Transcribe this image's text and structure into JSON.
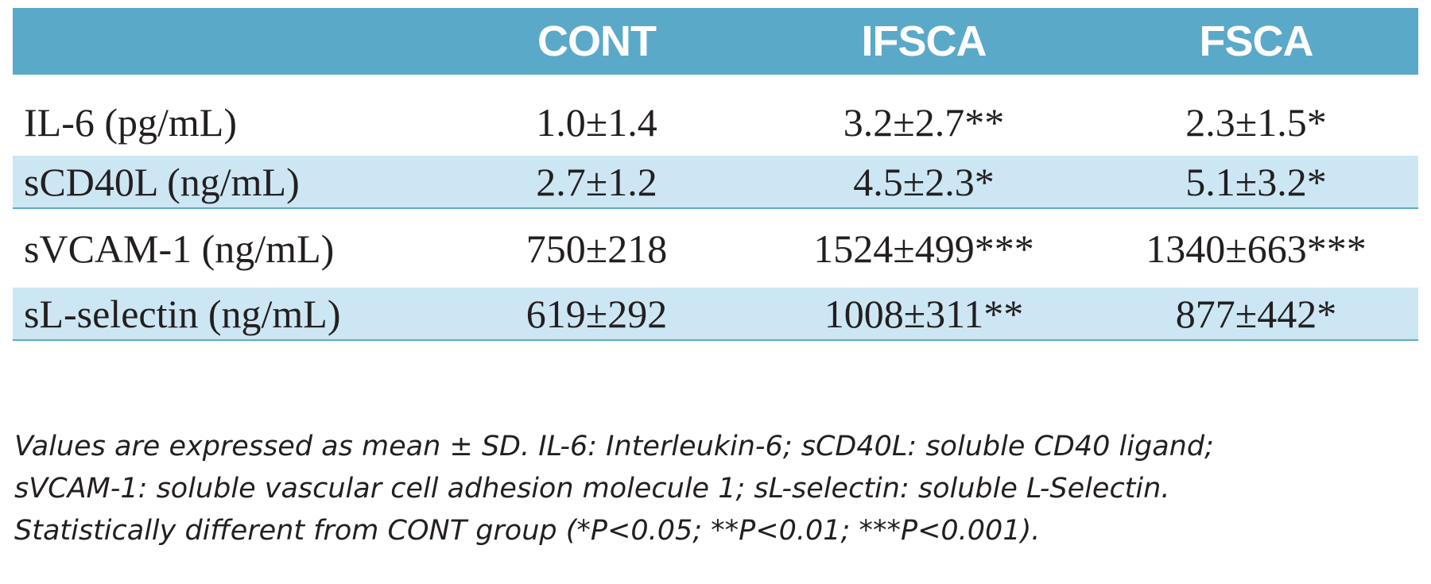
{
  "table": {
    "columns": [
      "",
      "CONT",
      "IFSCA",
      "FSCA"
    ],
    "rows": [
      {
        "label": "IL-6 (pg/mL)",
        "cont": "1.0±1.4",
        "ifsca": "3.2±2.7**",
        "fsca": "2.3±1.5*"
      },
      {
        "label": "sCD40L (ng/mL)",
        "cont": "2.7±1.2",
        "ifsca": "4.5±2.3*",
        "fsca": "5.1±3.2*"
      },
      {
        "label": "sVCAM-1 (ng/mL)",
        "cont": "750±218",
        "ifsca": "1524±499***",
        "fsca": "1340±663***"
      },
      {
        "label": "sL-selectin (ng/mL)",
        "cont": "619±292",
        "ifsca": "1008±311**",
        "fsca": "877±442*"
      }
    ]
  },
  "footnote": {
    "line1": "Values are expressed as mean ± SD. IL-6: Interleukin-6; sCD40L: soluble CD40 ligand;",
    "line2": "sVCAM-1: soluble vascular cell adhesion molecule 1; sL-selectin: soluble L-Selectin.",
    "line3": "Statistically different from CONT group (*P<0.05; **P<0.01; ***P<0.001)."
  },
  "colors": {
    "header_bg": "#5ba9c9",
    "alt_row_bg": "#cde6f3",
    "text": "#231f20"
  }
}
